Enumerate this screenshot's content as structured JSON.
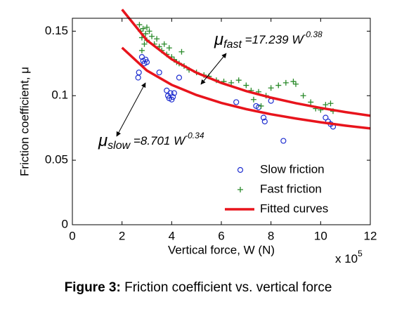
{
  "chart_data": {
    "type": "scatter",
    "xlabel": "Vertical force, W (N)",
    "ylabel": "Friction coefficient,  μ",
    "x_multiplier": {
      "base": "x 10",
      "exponent": "5"
    },
    "caption": {
      "bold": "Figure 3:",
      "text": " Friction coefficient vs. vertical force"
    },
    "xlim": [
      0,
      12
    ],
    "xticks": [
      0,
      2,
      4,
      6,
      8,
      10,
      12
    ],
    "ylim": [
      0,
      0.16
    ],
    "yticks": [
      0,
      0.05,
      0.1,
      0.15
    ],
    "grid": false,
    "legend": "lower right",
    "series": [
      {
        "name": "Slow friction",
        "color": "#1f2fd0",
        "marker": "circle",
        "x": [
          2.65,
          2.68,
          2.8,
          2.85,
          2.9,
          2.95,
          3.0,
          3.5,
          3.8,
          3.85,
          3.9,
          3.95,
          4.0,
          4.05,
          4.1,
          4.3,
          6.6,
          7.4,
          7.5,
          7.7,
          7.75,
          8.0,
          8.5,
          10.2,
          10.3,
          10.4,
          10.5
        ],
        "values": [
          0.114,
          0.118,
          0.13,
          0.127,
          0.125,
          0.128,
          0.126,
          0.118,
          0.104,
          0.1,
          0.098,
          0.102,
          0.097,
          0.099,
          0.102,
          0.114,
          0.095,
          0.092,
          0.091,
          0.083,
          0.08,
          0.096,
          0.065,
          0.083,
          0.08,
          0.078,
          0.076
        ]
      },
      {
        "name": "Fast friction",
        "color": "#2a8a2a",
        "marker": "plus",
        "x": [
          2.7,
          2.75,
          2.8,
          2.85,
          2.9,
          2.95,
          3.0,
          3.1,
          3.2,
          3.3,
          3.4,
          3.5,
          3.6,
          3.7,
          3.8,
          3.9,
          4.0,
          4.1,
          4.2,
          4.4,
          4.5,
          4.7,
          5.0,
          5.3,
          5.5,
          5.8,
          6.1,
          6.4,
          6.7,
          7.0,
          7.2,
          7.5,
          7.8,
          8.0,
          8.3,
          8.6,
          8.9,
          9.0,
          9.3,
          9.6,
          9.8,
          10.0,
          10.2,
          10.4,
          10.5,
          3.0,
          2.8,
          4.3,
          7.3,
          7.6
        ],
        "values": [
          0.155,
          0.15,
          0.145,
          0.152,
          0.14,
          0.148,
          0.143,
          0.15,
          0.146,
          0.14,
          0.144,
          0.138,
          0.135,
          0.14,
          0.132,
          0.137,
          0.13,
          0.128,
          0.126,
          0.134,
          0.123,
          0.12,
          0.118,
          0.116,
          0.115,
          0.112,
          0.111,
          0.11,
          0.112,
          0.108,
          0.104,
          0.103,
          0.1,
          0.106,
          0.108,
          0.11,
          0.111,
          0.109,
          0.1,
          0.095,
          0.09,
          0.089,
          0.093,
          0.094,
          0.088,
          0.153,
          0.135,
          0.125,
          0.097,
          0.092
        ]
      }
    ],
    "curves": {
      "name": "Fitted curves",
      "color": "#e8141c",
      "lines": [
        {
          "x": [
            2,
            3,
            4,
            5,
            6,
            7,
            8,
            9,
            10,
            11,
            12
          ],
          "values": [
            0.1668,
            0.143,
            0.1282,
            0.1178,
            0.1099,
            0.1036,
            0.0985,
            0.0942,
            0.0905,
            0.0873,
            0.0845
          ]
        },
        {
          "x": [
            2,
            3,
            4,
            5,
            6,
            7,
            8,
            9,
            10,
            11,
            12
          ],
          "values": [
            0.1372,
            0.1195,
            0.1084,
            0.1005,
            0.0944,
            0.0896,
            0.0856,
            0.0823,
            0.0794,
            0.0768,
            0.0746
          ]
        }
      ]
    },
    "annotations": [
      {
        "symbol": "μ",
        "subscript": "fast",
        "formula": " =17.239 W",
        "exponent": "-0.38"
      },
      {
        "symbol": "μ",
        "subscript": "slow",
        "formula": " =8.701 W",
        "exponent": "-0.34"
      }
    ]
  }
}
